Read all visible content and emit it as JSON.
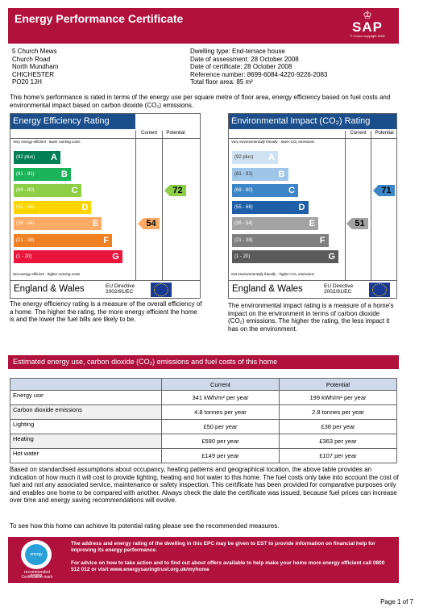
{
  "header": {
    "title": "Energy Performance Certificate",
    "logo_text": "SAP",
    "logo_copyright": "© Crown copyright 2008"
  },
  "address": [
    "5 Church Mews",
    "Church Road",
    "North Mundham",
    "CHICHESTER",
    "PO20 1JH"
  ],
  "details": [
    "Dwelling type: End-terrace house",
    "Date of assessment: 28 October 2008",
    "Date of certificate: 28 October 2008",
    "Reference number: 8699-6084-4220-9226-2083",
    "Total floor area: 85 m²"
  ],
  "intro": "This home's performance is rated in terms of the energy use per square metre of floor area, energy efficiency based on fuel costs and environmental impact based on carbon dioxide (CO₂) emissions.",
  "energy_rating": {
    "title": "Energy Efficiency Rating",
    "col_current": "Current",
    "col_potential": "Potential",
    "top_note": "Very energy efficient - lower running costs",
    "bottom_note": "Not energy efficient - higher running costs",
    "bands": [
      {
        "range": "(92 plus)",
        "letter": "A",
        "color": "#008054"
      },
      {
        "range": "(81 - 91)",
        "letter": "B",
        "color": "#19b459"
      },
      {
        "range": "(69 - 80)",
        "letter": "C",
        "color": "#8dce46"
      },
      {
        "range": "(55 - 68)",
        "letter": "D",
        "color": "#ffd500"
      },
      {
        "range": "(39 - 54)",
        "letter": "E",
        "color": "#fcaa65"
      },
      {
        "range": "(21 - 38)",
        "letter": "F",
        "color": "#ef8023"
      },
      {
        "range": "(1 - 20)",
        "letter": "G",
        "color": "#e9153b"
      }
    ],
    "current": "54",
    "potential": "72",
    "current_color": "#fcaa65",
    "potential_color": "#8dce46",
    "region": "England & Wales",
    "directive": "EU Directive\n2002/91/EC",
    "description": "The energy efficiency rating is a measure of the overall efficiency of a home. The higher the rating, the more energy efficient the home is and the lower the fuel bills are likely to be."
  },
  "env_rating": {
    "title": "Environmental Impact (CO₂) Rating",
    "col_current": "Current",
    "col_potential": "Potential",
    "top_note": "Very environmentally friendly - lower CO₂ emissions",
    "bottom_note": "Not environmentally friendly - higher CO₂ emissions",
    "bands": [
      {
        "range": "(92 plus)",
        "letter": "A",
        "color": "#cfe2f3"
      },
      {
        "range": "(81 - 91)",
        "letter": "B",
        "color": "#9fc5e8"
      },
      {
        "range": "(69 - 80)",
        "letter": "C",
        "color": "#3d85c6"
      },
      {
        "range": "(55 - 68)",
        "letter": "D",
        "color": "#1f5fa8"
      },
      {
        "range": "(39 - 54)",
        "letter": "E",
        "color": "#a3a3a3"
      },
      {
        "range": "(21 - 38)",
        "letter": "F",
        "color": "#7f7f7f"
      },
      {
        "range": "(1 - 20)",
        "letter": "G",
        "color": "#5a5a5a"
      }
    ],
    "current": "51",
    "potential": "71",
    "current_color": "#a3a3a3",
    "potential_color": "#3d85c6",
    "region": "England & Wales",
    "directive": "EU Directive\n2002/91/EC",
    "description": "The environmental impact rating is a measure of a home's impact on the environment in terms of carbon dioxide (CO₂) emissions. The higher the rating, the less impact it has on the environment."
  },
  "estimate": {
    "title": "Estimated energy use, carbon dioxide (CO₂) emissions and fuel costs of this home",
    "headers": [
      "",
      "Current",
      "Potential"
    ],
    "rows": [
      [
        "Energy use",
        "341 kWh/m² per year",
        "199 kWh/m² per year"
      ],
      [
        "Carbon dioxide emissions",
        "4.8 tonnes per year",
        "2.8 tonnes per year"
      ],
      [
        "Lighting",
        "£50 per year",
        "£38 per year"
      ],
      [
        "Heating",
        "£590 per year",
        "£363 per year"
      ],
      [
        "Hot water",
        "£149 per year",
        "£107 per year"
      ]
    ]
  },
  "assumptions": "Based on standardised assumptions about occupancy, heating patterns and geographical location, the above table provides an indication of how much it will cost to provide lighting, heating and hot water to this home. The fuel costs only take into account the cost of fuel and not any associated service, maintenance or safety inspection. This certificate has been provided for comparative purposes only and enables one home to be compared with another. Always check the date the certificate was issued, because fuel prices can increase over time and energy saving recommendations will evolve.",
  "potential_note": "To see how this home can achieve its potential rating please see the recommended measures.",
  "promo": {
    "logo_inner": "energy saving",
    "logo_caption": "recommended\nCertification mark",
    "text1": "The address and energy rating of the dwelling in this EPC may be given to EST to provide information on financial help for improving its energy performance.",
    "text2": "For advice on how to take action and to find out about offers available to help make your home more energy efficient call 0800 512 012 or visit www.energysavingtrust.org.uk/myhome"
  },
  "page": "Page 1 of 7"
}
